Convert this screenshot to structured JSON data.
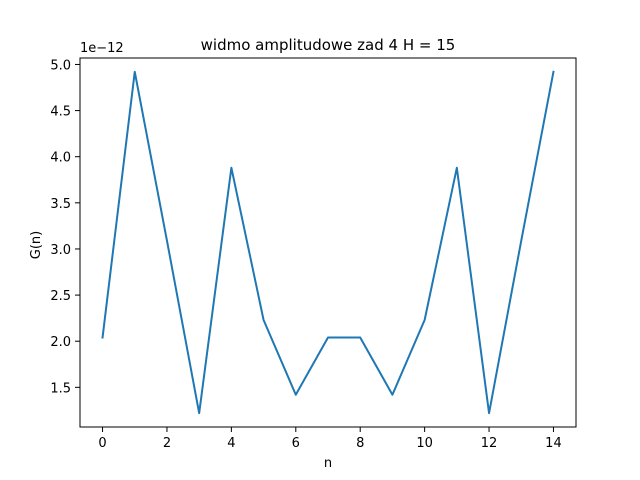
{
  "chart_data": {
    "type": "line",
    "title": "widmo amplitudowe zad 4 H = 15",
    "xlabel": "n",
    "ylabel": "G(n)",
    "y_offset_label": "1e−12",
    "y_scale_multiplier": 1e-12,
    "x": [
      0,
      1,
      2,
      3,
      4,
      5,
      6,
      7,
      8,
      9,
      10,
      11,
      12,
      13,
      14
    ],
    "series": [
      {
        "values": [
          2.04,
          4.92,
          3.09,
          1.22,
          3.88,
          2.23,
          1.42,
          2.04,
          2.04,
          1.42,
          2.23,
          3.88,
          1.22,
          3.09,
          4.92
        ]
      }
    ],
    "xlim": [
      -0.7,
      14.7
    ],
    "ylim": [
      1.07,
      5.07
    ],
    "x_ticks": [
      "0",
      "2",
      "4",
      "6",
      "8",
      "10",
      "12",
      "14"
    ],
    "y_ticks": [
      "1.5",
      "2.0",
      "2.5",
      "3.0",
      "3.5",
      "4.0",
      "4.5",
      "5.0"
    ],
    "grid": false,
    "line_color": "#1f77b4"
  }
}
